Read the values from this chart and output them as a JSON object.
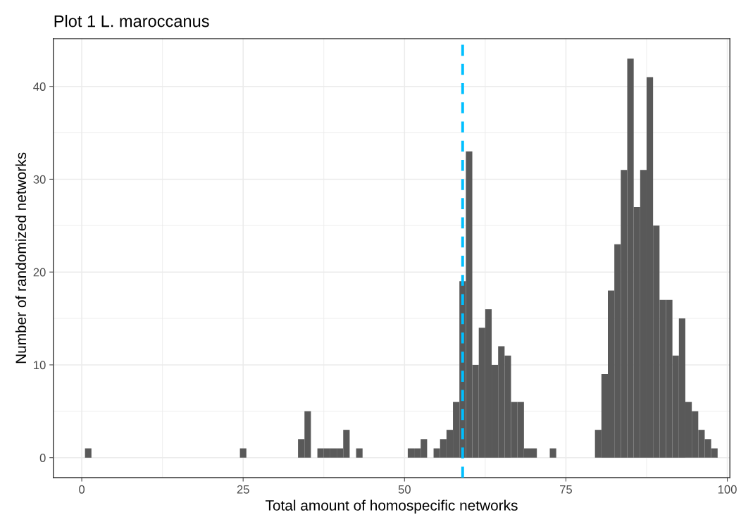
{
  "chart_data": {
    "type": "histogram",
    "title": "Plot 1 L. maroccanus",
    "xlabel": "Total amount of homospecific networks",
    "ylabel": "Number of randomized networks",
    "bins": [
      0.5,
      1.5,
      2.5,
      3.5,
      4.5,
      5.5,
      6.5,
      7.5,
      8.5,
      9.5,
      10.5,
      11.5,
      12.5,
      13.5,
      14.5,
      15.5,
      16.5,
      17.5,
      18.5,
      19.5,
      20.5,
      21.5,
      22.5,
      23.5,
      24.5,
      25.5,
      26.5,
      27.5,
      28.5,
      29.5,
      30.5,
      31.5,
      32.5,
      33.5,
      34.5,
      35.5,
      36.5,
      37.5,
      38.5,
      39.5,
      40.5,
      41.5,
      42.5,
      43.5,
      44.5,
      45.5,
      46.5,
      47.5,
      48.5,
      49.5,
      50.5,
      51.5,
      52.5,
      53.5,
      54.5,
      55.5,
      56.5,
      57.5,
      58.5,
      59.5,
      60.5,
      61.5,
      62.5,
      63.5,
      64.5,
      65.5,
      66.5,
      67.5,
      68.5,
      69.5,
      70.5,
      71.5,
      72.5,
      73.5,
      74.5,
      75.5,
      76.5,
      77.5,
      78.5,
      79.5,
      80.5,
      81.5,
      82.5,
      83.5,
      84.5,
      85.5,
      86.5,
      87.5,
      88.5,
      89.5,
      90.5,
      91.5,
      92.5,
      93.5,
      94.5,
      95.5,
      96.5,
      97.5,
      98.5
    ],
    "values": [
      1,
      0,
      0,
      0,
      0,
      0,
      0,
      0,
      0,
      0,
      0,
      0,
      0,
      0,
      0,
      0,
      0,
      0,
      0,
      0,
      0,
      0,
      0,
      0,
      1,
      0,
      0,
      0,
      0,
      0,
      0,
      0,
      0,
      2,
      5,
      0,
      1,
      1,
      1,
      1,
      3,
      0,
      1,
      0,
      0,
      0,
      0,
      0,
      0,
      0,
      1,
      1,
      2,
      0,
      1,
      2,
      3,
      6,
      19,
      33,
      10,
      14,
      16,
      10,
      12,
      11,
      6,
      6,
      1,
      1,
      0,
      0,
      1,
      0,
      0,
      0,
      0,
      0,
      0,
      3,
      9,
      18,
      23,
      31,
      43,
      27,
      31,
      41,
      25,
      17,
      17,
      11,
      15,
      6,
      5,
      3,
      2,
      1
    ],
    "color": "#595959",
    "xlim": [
      -4.4,
      100.4
    ],
    "xticks": [
      0,
      25,
      50,
      75,
      100
    ],
    "ylim": [
      -2.15,
      45.15
    ],
    "yticks": [
      0,
      10,
      20,
      30,
      40
    ],
    "grid": true,
    "ref_lines": [
      {
        "axis": "x",
        "value": 59,
        "color": "#00bfff",
        "line_style": "dashed"
      }
    ]
  }
}
